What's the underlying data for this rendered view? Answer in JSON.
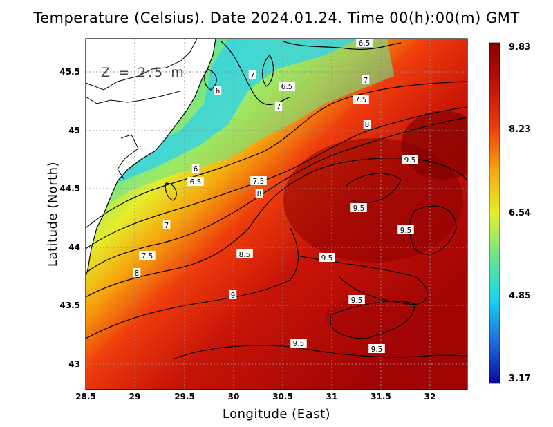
{
  "title": "Temperature (Celsius). Date 2024.01.24. Time 00(h):00(m) GMT",
  "depth_label": "Z = 2.5 m",
  "x_axis_title": "Longitude (East)",
  "y_axis_title": "Latitude (North)",
  "x_ticks": [
    "28.5",
    "29",
    "29.5",
    "30",
    "30.5",
    "31",
    "31.5",
    "32"
  ],
  "y_ticks": [
    "45.5",
    "45",
    "44.5",
    "44",
    "43.5",
    "43"
  ],
  "colorbar": {
    "ticks": [
      "9.83",
      "8.23",
      "6.54",
      "4.85",
      "3.17"
    ],
    "min": 3.17,
    "max": 9.83,
    "colors": [
      "#0a0a9a",
      "#1e6fe0",
      "#18d6ee",
      "#6ee68a",
      "#e6ee2a",
      "#f5a80e",
      "#ee3c0c",
      "#c01208",
      "#880000"
    ]
  },
  "chart_data": {
    "type": "heatmap",
    "title": "Temperature (Celsius). Date 2024.01.24. Time 00(h):00(m) GMT",
    "xlabel": "Longitude (East)",
    "ylabel": "Latitude (North)",
    "xlim": [
      28.5,
      32.4
    ],
    "ylim": [
      42.8,
      45.8
    ],
    "grid": true,
    "contour_labels": [
      "6.5",
      "7",
      "6",
      "6.5",
      "7",
      "7.5",
      "7",
      "6",
      "6.5",
      "7.5",
      "8",
      "9.5",
      "8",
      "9.5",
      "7",
      "9.5",
      "7.5",
      "8.5",
      "9.5",
      "8",
      "9",
      "9.5",
      "9.5",
      "9.5"
    ]
  }
}
